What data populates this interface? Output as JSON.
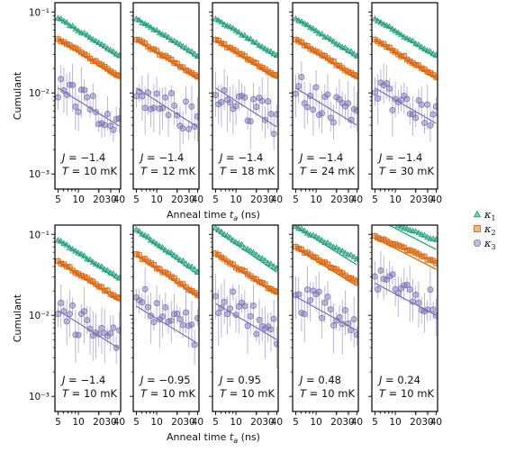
{
  "colors": {
    "k1": "#1b9e77",
    "k2": "#d95f02",
    "k3": "#7570b3"
  },
  "legend": [
    {
      "key": "k1",
      "label": "κ",
      "sub": "1",
      "marker": "triangle"
    },
    {
      "key": "k2",
      "label": "κ",
      "sub": "2",
      "marker": "square"
    },
    {
      "key": "k3",
      "label": "κ",
      "sub": "3",
      "marker": "circle"
    }
  ],
  "chart_data": [
    {
      "type": "scatter",
      "row": 0,
      "col": 0,
      "annotation": {
        "J": "−1.4",
        "T": "10 mK"
      },
      "xlabel": "Anneal time t_a (ns)",
      "ylabel": "Cumulant",
      "xscale": "log",
      "yscale": "log",
      "xlim": [
        4.5,
        42
      ],
      "ylim": [
        0.00065,
        0.13
      ],
      "x_ticks": [
        "5",
        "10",
        "20",
        "30",
        "40"
      ],
      "y_ticks": [
        "10⁻³",
        "10⁻²",
        "10⁻¹"
      ],
      "series": [
        {
          "key": "k1",
          "points": [
            [
              5,
              0.085
            ],
            [
              40,
              0.029
            ]
          ],
          "fit": [
            [
              5,
              0.085
            ],
            [
              40,
              0.027
            ]
          ]
        },
        {
          "key": "k2",
          "points": [
            [
              5,
              0.047
            ],
            [
              40,
              0.016
            ]
          ],
          "fit": [
            [
              5,
              0.046
            ],
            [
              40,
              0.015
            ]
          ]
        },
        {
          "key": "k3",
          "points": [
            [
              5,
              0.011
            ],
            [
              40,
              0.0045
            ]
          ],
          "fit": [
            [
              5,
              0.0115
            ],
            [
              40,
              0.0039
            ]
          ]
        }
      ]
    },
    {
      "type": "scatter",
      "row": 0,
      "col": 1,
      "annotation": {
        "J": "−1.4",
        "T": "12 mK"
      },
      "series": [
        {
          "key": "k1",
          "points": [
            [
              5,
              0.083
            ],
            [
              40,
              0.029
            ]
          ],
          "fit": [
            [
              5,
              0.084
            ],
            [
              40,
              0.027
            ]
          ]
        },
        {
          "key": "k2",
          "points": [
            [
              5,
              0.046
            ],
            [
              40,
              0.016
            ]
          ],
          "fit": [
            [
              5,
              0.045
            ],
            [
              40,
              0.015
            ]
          ]
        },
        {
          "key": "k3",
          "points": [
            [
              5,
              0.011
            ],
            [
              40,
              0.0045
            ]
          ],
          "fit": [
            [
              5,
              0.0115
            ],
            [
              40,
              0.0038
            ]
          ]
        }
      ]
    },
    {
      "type": "scatter",
      "row": 0,
      "col": 2,
      "annotation": {
        "J": "−1.4",
        "T": "18 mK"
      },
      "series": [
        {
          "key": "k1",
          "points": [
            [
              5,
              0.083
            ],
            [
              40,
              0.029
            ]
          ],
          "fit": [
            [
              5,
              0.084
            ],
            [
              40,
              0.027
            ]
          ]
        },
        {
          "key": "k2",
          "points": [
            [
              5,
              0.046
            ],
            [
              40,
              0.016
            ]
          ],
          "fit": [
            [
              5,
              0.045
            ],
            [
              40,
              0.015
            ]
          ]
        },
        {
          "key": "k3",
          "points": [
            [
              5,
              0.011
            ],
            [
              40,
              0.0045
            ]
          ],
          "fit": [
            [
              5,
              0.0115
            ],
            [
              40,
              0.0038
            ]
          ]
        }
      ]
    },
    {
      "type": "scatter",
      "row": 0,
      "col": 3,
      "annotation": {
        "J": "−1.4",
        "T": "24 mK"
      },
      "series": [
        {
          "key": "k1",
          "points": [
            [
              5,
              0.083
            ],
            [
              40,
              0.029
            ]
          ],
          "fit": [
            [
              5,
              0.084
            ],
            [
              40,
              0.027
            ]
          ]
        },
        {
          "key": "k2",
          "points": [
            [
              5,
              0.046
            ],
            [
              40,
              0.016
            ]
          ],
          "fit": [
            [
              5,
              0.045
            ],
            [
              40,
              0.015
            ]
          ]
        },
        {
          "key": "k3",
          "points": [
            [
              5,
              0.011
            ],
            [
              40,
              0.0047
            ]
          ],
          "fit": [
            [
              5,
              0.0115
            ],
            [
              40,
              0.004
            ]
          ]
        }
      ]
    },
    {
      "type": "scatter",
      "row": 0,
      "col": 4,
      "annotation": {
        "J": "−1.4",
        "T": "30 mK"
      },
      "series": [
        {
          "key": "k1",
          "points": [
            [
              5,
              0.083
            ],
            [
              40,
              0.029
            ]
          ],
          "fit": [
            [
              5,
              0.084
            ],
            [
              40,
              0.027
            ]
          ]
        },
        {
          "key": "k2",
          "points": [
            [
              5,
              0.046
            ],
            [
              40,
              0.016
            ]
          ],
          "fit": [
            [
              5,
              0.045
            ],
            [
              40,
              0.015
            ]
          ]
        },
        {
          "key": "k3",
          "points": [
            [
              5,
              0.011
            ],
            [
              40,
              0.005
            ]
          ],
          "fit": [
            [
              5,
              0.0115
            ],
            [
              40,
              0.0042
            ]
          ]
        }
      ]
    },
    {
      "type": "scatter",
      "row": 1,
      "col": 0,
      "annotation": {
        "J": "−1.4",
        "T": "10 mK"
      },
      "series": [
        {
          "key": "k1",
          "points": [
            [
              5,
              0.085
            ],
            [
              40,
              0.029
            ]
          ],
          "fit": [
            [
              5,
              0.085
            ],
            [
              40,
              0.027
            ]
          ]
        },
        {
          "key": "k2",
          "points": [
            [
              5,
              0.047
            ],
            [
              40,
              0.016
            ]
          ],
          "fit": [
            [
              5,
              0.046
            ],
            [
              40,
              0.015
            ]
          ]
        },
        {
          "key": "k3",
          "points": [
            [
              5,
              0.011
            ],
            [
              40,
              0.0045
            ]
          ],
          "fit": [
            [
              5,
              0.0115
            ],
            [
              40,
              0.0039
            ]
          ]
        }
      ]
    },
    {
      "type": "scatter",
      "row": 1,
      "col": 1,
      "annotation": {
        "J": "−0.95",
        "T": "10 mK"
      },
      "series": [
        {
          "key": "k1",
          "points": [
            [
              5,
              0.115
            ],
            [
              40,
              0.035
            ]
          ],
          "fit": [
            [
              5,
              0.11
            ],
            [
              40,
              0.032
            ]
          ]
        },
        {
          "key": "k2",
          "points": [
            [
              5,
              0.057
            ],
            [
              40,
              0.018
            ]
          ],
          "fit": [
            [
              5,
              0.055
            ],
            [
              40,
              0.017
            ]
          ]
        },
        {
          "key": "k3",
          "points": [
            [
              5,
              0.017
            ],
            [
              40,
              0.006
            ]
          ],
          "fit": [
            [
              5,
              0.013
            ],
            [
              40,
              0.0045
            ]
          ]
        }
      ]
    },
    {
      "type": "scatter",
      "row": 1,
      "col": 2,
      "annotation": {
        "J": "0.95",
        "T": "10 mK"
      },
      "series": [
        {
          "key": "k1",
          "points": [
            [
              5,
              0.12
            ],
            [
              40,
              0.038
            ]
          ],
          "fit": [
            [
              5,
              0.112
            ],
            [
              40,
              0.034
            ]
          ]
        },
        {
          "key": "k2",
          "points": [
            [
              5,
              0.058
            ],
            [
              40,
              0.019
            ]
          ],
          "fit": [
            [
              5,
              0.056
            ],
            [
              40,
              0.018
            ]
          ]
        },
        {
          "key": "k3",
          "points": [
            [
              5,
              0.017
            ],
            [
              40,
              0.0065
            ]
          ],
          "fit": [
            [
              5,
              0.014
            ],
            [
              40,
              0.005
            ]
          ]
        }
      ]
    },
    {
      "type": "scatter",
      "row": 1,
      "col": 3,
      "annotation": {
        "J": "0.48",
        "T": "10 mK"
      },
      "series": [
        {
          "key": "k1",
          "points": [
            [
              5,
              0.125
            ],
            [
              40,
              0.05
            ]
          ],
          "fit": [
            [
              5,
              0.125
            ],
            [
              40,
              0.042
            ]
          ]
        },
        {
          "key": "k2",
          "points": [
            [
              5,
              0.07
            ],
            [
              40,
              0.026
            ]
          ],
          "fit": [
            [
              5,
              0.068
            ],
            [
              40,
              0.023
            ]
          ]
        },
        {
          "key": "k3",
          "points": [
            [
              5,
              0.017
            ],
            [
              40,
              0.008
            ]
          ],
          "fit": [
            [
              5,
              0.017
            ],
            [
              40,
              0.0065
            ]
          ]
        }
      ]
    },
    {
      "type": "scatter",
      "row": 1,
      "col": 4,
      "annotation": {
        "J": "0.24",
        "T": "10 mK"
      },
      "series": [
        {
          "key": "k1",
          "points": [
            [
              5,
              0.17
            ],
            [
              40,
              0.085
            ]
          ],
          "fit": [
            [
              5,
              0.16
            ],
            [
              40,
              0.065
            ]
          ]
        },
        {
          "key": "k2",
          "points": [
            [
              5,
              0.095
            ],
            [
              40,
              0.045
            ]
          ],
          "fit": [
            [
              5,
              0.09
            ],
            [
              40,
              0.037
            ]
          ]
        },
        {
          "key": "k3",
          "points": [
            [
              5,
              0.028
            ],
            [
              40,
              0.013
            ]
          ],
          "fit": [
            [
              5,
              0.025
            ],
            [
              40,
              0.01
            ]
          ]
        }
      ]
    }
  ]
}
